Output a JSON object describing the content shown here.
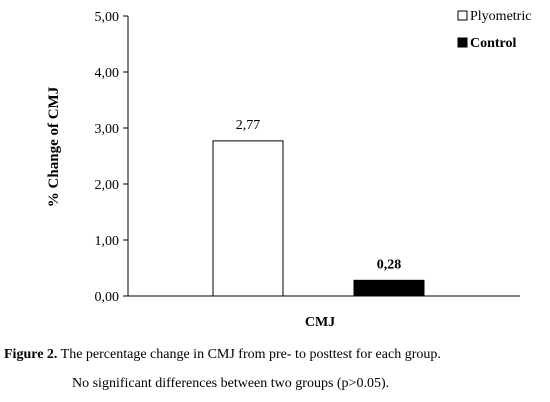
{
  "chart_data": {
    "type": "bar",
    "categories": [
      "CMJ"
    ],
    "series": [
      {
        "name": "Plyometric",
        "values": [
          2.77
        ],
        "color": "#ffffff",
        "value_label": "2,77"
      },
      {
        "name": "Control",
        "values": [
          0.28
        ],
        "color": "#000000",
        "value_label": "0,28"
      }
    ],
    "ylabel": "% Change of CMJ",
    "xlabel": "CMJ",
    "ylim": [
      0,
      5
    ],
    "yticks": [
      0,
      1,
      2,
      3,
      4,
      5
    ],
    "ytick_labels": [
      "0,00",
      "1,00",
      "2,00",
      "3,00",
      "4,00",
      "5,00"
    ],
    "grid": false,
    "legend_position": "top-right"
  },
  "caption": {
    "label": "Figure 2.",
    "text": " The percentage change in CMJ from pre- to posttest for each group.",
    "note": "No significant differences between two groups (p>0.05)."
  }
}
